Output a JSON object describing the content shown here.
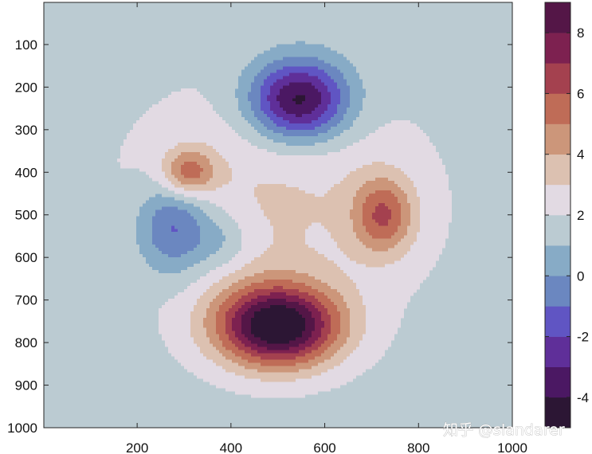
{
  "chart_data": {
    "type": "heatmap",
    "subtype": "filled-contour",
    "title": "",
    "xlabel": "",
    "ylabel": "",
    "xlim": [
      1,
      1000
    ],
    "ylim": [
      1,
      1000
    ],
    "y_direction": "reversed",
    "x_ticks": [
      200,
      400,
      600,
      800,
      1000
    ],
    "y_ticks": [
      100,
      200,
      300,
      400,
      500,
      600,
      700,
      800,
      900,
      1000
    ],
    "colorbar": {
      "range": [
        -5,
        9
      ],
      "ticks": [
        -4,
        -2,
        0,
        2,
        4,
        6,
        8
      ],
      "levels": [
        {
          "from": -5,
          "to": -4,
          "color": "#2c1634"
        },
        {
          "from": -4,
          "to": -3,
          "color": "#4b1863"
        },
        {
          "from": -3,
          "to": -2,
          "color": "#5f2f99"
        },
        {
          "from": -2,
          "to": -1,
          "color": "#6055c3"
        },
        {
          "from": -1,
          "to": 0,
          "color": "#6b87c0"
        },
        {
          "from": 0,
          "to": 1,
          "color": "#87abc6"
        },
        {
          "from": 1,
          "to": 2,
          "color": "#bbcbd2"
        },
        {
          "from": 2,
          "to": 3,
          "color": "#e2dae3"
        },
        {
          "from": 3,
          "to": 4,
          "color": "#dcc1b1"
        },
        {
          "from": 4,
          "to": 5,
          "color": "#cc967a"
        },
        {
          "from": 5,
          "to": 6,
          "color": "#bf6c57"
        },
        {
          "from": 6,
          "to": 7,
          "color": "#a4414f"
        },
        {
          "from": 7,
          "to": 8,
          "color": "#7d2150"
        },
        {
          "from": 8,
          "to": 9,
          "color": "#541647"
        },
        {
          "from": 9,
          "to": 10,
          "color": "#2c1634"
        }
      ]
    },
    "field_components": [
      {
        "cx": 500,
        "cy": 760,
        "sx": 130,
        "sy": 95,
        "amplitude": 8.5
      },
      {
        "cx": 545,
        "cy": 230,
        "sx": 105,
        "sy": 95,
        "amplitude": -6.4
      },
      {
        "cx": 280,
        "cy": 530,
        "sx": 80,
        "sy": 110,
        "amplitude": -3.5
      },
      {
        "cx": 310,
        "cy": 400,
        "sx": 55,
        "sy": 55,
        "amplitude": 3.6
      },
      {
        "cx": 725,
        "cy": 500,
        "sx": 65,
        "sy": 90,
        "amplitude": 3.8
      },
      {
        "cx": 495,
        "cy": 470,
        "sx": 340,
        "sy": 300,
        "amplitude": 1.6
      },
      {
        "cx": 385,
        "cy": 560,
        "sx": 60,
        "sy": 70,
        "amplitude": -1.3
      }
    ],
    "field_baseline": 1.5
  },
  "watermark": {
    "text": "知乎 @slandarer"
  }
}
